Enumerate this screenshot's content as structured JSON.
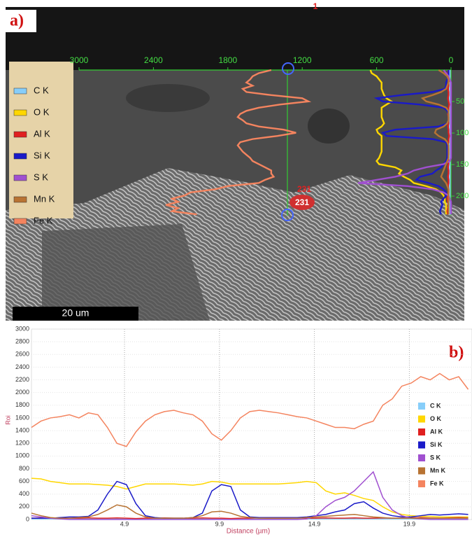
{
  "chart_data": [
    {
      "type": "linescan-overlay",
      "label": "a)",
      "xlim": [
        3000,
        0
      ],
      "xticks": [
        3000,
        2400,
        1800,
        1200,
        600,
        0
      ],
      "ylim": [
        0,
        231
      ],
      "yticks": [
        50,
        100,
        150,
        200
      ],
      "annotations": [
        "1",
        "231",
        "231"
      ],
      "scale_bar": "20 um",
      "legend": "left"
    },
    {
      "type": "line",
      "label": "b)",
      "xlabel": "Distance (µm)",
      "ylabel": "Roi",
      "x": [
        0,
        0.5,
        1,
        1.5,
        2,
        2.5,
        3,
        3.5,
        4,
        4.5,
        5,
        5.5,
        6,
        6.5,
        7,
        7.5,
        8,
        8.5,
        9,
        9.5,
        10,
        10.5,
        11,
        11.5,
        12,
        12.5,
        13,
        13.5,
        14,
        14.5,
        15,
        15.5,
        16,
        16.5,
        17,
        17.5,
        18,
        18.5,
        19,
        19.5,
        20,
        20.5,
        21,
        21.5,
        22,
        22.5,
        23
      ],
      "xlim": [
        0,
        23.2
      ],
      "xticks": [
        4.9,
        9.9,
        14.9,
        19.9
      ],
      "ylim": [
        0,
        3000
      ],
      "yticks": [
        0,
        200,
        400,
        600,
        800,
        1000,
        1200,
        1400,
        1600,
        1800,
        2000,
        2200,
        2400,
        2600,
        2800,
        3000
      ],
      "grid": true,
      "legend": "right",
      "series": [
        {
          "name": "C  K",
          "color": "#87cefa",
          "values": [
            10,
            10,
            10,
            10,
            10,
            10,
            10,
            10,
            10,
            10,
            10,
            10,
            10,
            10,
            10,
            10,
            10,
            10,
            10,
            10,
            10,
            10,
            10,
            10,
            10,
            10,
            10,
            10,
            10,
            10,
            10,
            10,
            10,
            10,
            10,
            10,
            10,
            10,
            10,
            10,
            10,
            10,
            10,
            10,
            10,
            10,
            10
          ]
        },
        {
          "name": "O  K",
          "color": "#ffd700",
          "values": [
            650,
            640,
            600,
            580,
            560,
            560,
            560,
            550,
            540,
            520,
            480,
            520,
            560,
            560,
            560,
            560,
            550,
            540,
            560,
            600,
            590,
            560,
            560,
            560,
            560,
            560,
            560,
            570,
            580,
            600,
            580,
            450,
            400,
            420,
            380,
            330,
            300,
            200,
            120,
            80,
            60,
            50,
            50,
            40,
            40,
            40,
            40
          ]
        },
        {
          "name": "Al K",
          "color": "#e02020",
          "values": [
            20,
            25,
            20,
            15,
            20,
            20,
            25,
            20,
            20,
            25,
            20,
            15,
            20,
            20,
            25,
            20,
            20,
            20,
            25,
            20,
            20,
            15,
            20,
            20,
            25,
            20,
            20,
            20,
            25,
            20,
            20,
            25,
            20,
            20,
            25,
            20,
            20,
            25,
            20,
            20,
            25,
            30,
            25,
            20,
            25,
            30,
            25
          ]
        },
        {
          "name": "Si K",
          "color": "#1a1ac8",
          "values": [
            20,
            20,
            20,
            30,
            40,
            40,
            50,
            150,
            400,
            600,
            550,
            250,
            60,
            30,
            20,
            20,
            20,
            30,
            100,
            450,
            550,
            520,
            150,
            40,
            30,
            30,
            30,
            30,
            30,
            40,
            60,
            80,
            120,
            150,
            250,
            280,
            180,
            100,
            60,
            40,
            40,
            60,
            80,
            70,
            80,
            90,
            80
          ]
        },
        {
          "name": "S  K",
          "color": "#a050d0",
          "values": [
            60,
            40,
            20,
            10,
            0,
            0,
            0,
            0,
            0,
            0,
            0,
            0,
            0,
            0,
            0,
            0,
            0,
            0,
            0,
            0,
            0,
            0,
            0,
            0,
            0,
            0,
            0,
            0,
            0,
            10,
            60,
            200,
            300,
            350,
            450,
            600,
            750,
            350,
            150,
            60,
            20,
            10,
            0,
            0,
            0,
            0,
            0
          ]
        },
        {
          "name": "Mn K",
          "color": "#b87333",
          "values": [
            100,
            60,
            30,
            20,
            20,
            30,
            40,
            80,
            150,
            230,
            200,
            100,
            40,
            20,
            20,
            20,
            20,
            30,
            60,
            120,
            130,
            100,
            50,
            30,
            20,
            20,
            20,
            20,
            20,
            30,
            40,
            50,
            60,
            70,
            80,
            60,
            40,
            30,
            20,
            20,
            20,
            20,
            20,
            20,
            20,
            20,
            20
          ]
        },
        {
          "name": "Fe K",
          "color": "#f4845f",
          "values": [
            1450,
            1550,
            1600,
            1620,
            1650,
            1600,
            1680,
            1650,
            1450,
            1200,
            1150,
            1380,
            1550,
            1650,
            1700,
            1720,
            1680,
            1650,
            1550,
            1350,
            1250,
            1400,
            1600,
            1700,
            1720,
            1700,
            1680,
            1650,
            1620,
            1600,
            1550,
            1500,
            1450,
            1450,
            1430,
            1500,
            1550,
            1800,
            1900,
            2100,
            2150,
            2250,
            2200,
            2300,
            2200,
            2250,
            2050
          ]
        }
      ]
    }
  ]
}
